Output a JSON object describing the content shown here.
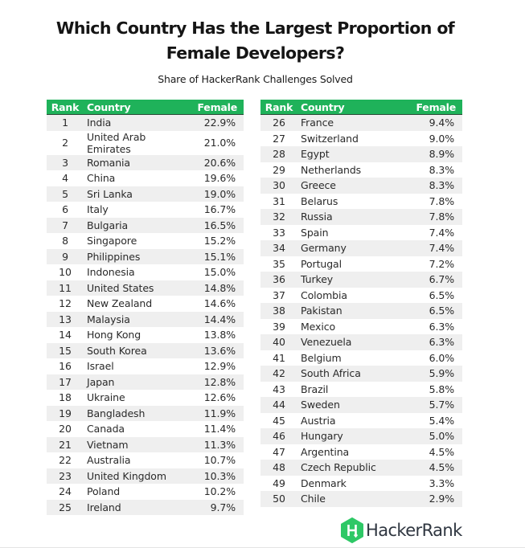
{
  "title_line1": "Which Country Has the Largest Proportion of",
  "title_line2": "Female Developers?",
  "subtitle": "Share of HackerRank Challenges Solved",
  "columns": {
    "rank": "Rank",
    "country": "Country",
    "female": "Female"
  },
  "colors": {
    "header_green": "#1fb25a",
    "stripe_gray": "#efefef",
    "logo_green": "#2ec866"
  },
  "left_table": [
    {
      "rank": "1",
      "country": "India",
      "female": "22.9%"
    },
    {
      "rank": "2",
      "country": "United Arab Emirates",
      "female": "21.0%"
    },
    {
      "rank": "3",
      "country": "Romania",
      "female": "20.6%"
    },
    {
      "rank": "4",
      "country": "China",
      "female": "19.6%"
    },
    {
      "rank": "5",
      "country": "Sri Lanka",
      "female": "19.0%"
    },
    {
      "rank": "6",
      "country": "Italy",
      "female": "16.7%"
    },
    {
      "rank": "7",
      "country": "Bulgaria",
      "female": "16.5%"
    },
    {
      "rank": "8",
      "country": "Singapore",
      "female": "15.2%"
    },
    {
      "rank": "9",
      "country": "Philippines",
      "female": "15.1%"
    },
    {
      "rank": "10",
      "country": "Indonesia",
      "female": "15.0%"
    },
    {
      "rank": "11",
      "country": "United States",
      "female": "14.8%"
    },
    {
      "rank": "12",
      "country": "New Zealand",
      "female": "14.6%"
    },
    {
      "rank": "13",
      "country": "Malaysia",
      "female": "14.4%"
    },
    {
      "rank": "14",
      "country": "Hong Kong",
      "female": "13.8%"
    },
    {
      "rank": "15",
      "country": "South Korea",
      "female": "13.6%"
    },
    {
      "rank": "16",
      "country": "Israel",
      "female": "12.9%"
    },
    {
      "rank": "17",
      "country": "Japan",
      "female": "12.8%"
    },
    {
      "rank": "18",
      "country": "Ukraine",
      "female": "12.6%"
    },
    {
      "rank": "19",
      "country": "Bangladesh",
      "female": "11.9%"
    },
    {
      "rank": "20",
      "country": "Canada",
      "female": "11.4%"
    },
    {
      "rank": "21",
      "country": "Vietnam",
      "female": "11.3%"
    },
    {
      "rank": "22",
      "country": "Australia",
      "female": "10.7%"
    },
    {
      "rank": "23",
      "country": "United Kingdom",
      "female": "10.3%"
    },
    {
      "rank": "24",
      "country": "Poland",
      "female": "10.2%"
    },
    {
      "rank": "25",
      "country": "Ireland",
      "female": "9.7%"
    }
  ],
  "right_table": [
    {
      "rank": "26",
      "country": "France",
      "female": "9.4%"
    },
    {
      "rank": "27",
      "country": "Switzerland",
      "female": "9.0%"
    },
    {
      "rank": "28",
      "country": "Egypt",
      "female": "8.9%"
    },
    {
      "rank": "29",
      "country": "Netherlands",
      "female": "8.3%"
    },
    {
      "rank": "30",
      "country": "Greece",
      "female": "8.3%"
    },
    {
      "rank": "31",
      "country": "Belarus",
      "female": "7.8%"
    },
    {
      "rank": "32",
      "country": "Russia",
      "female": "7.8%"
    },
    {
      "rank": "33",
      "country": "Spain",
      "female": "7.4%"
    },
    {
      "rank": "34",
      "country": "Germany",
      "female": "7.4%"
    },
    {
      "rank": "35",
      "country": "Portugal",
      "female": "7.2%"
    },
    {
      "rank": "36",
      "country": "Turkey",
      "female": "6.7%"
    },
    {
      "rank": "37",
      "country": "Colombia",
      "female": "6.5%"
    },
    {
      "rank": "38",
      "country": "Pakistan",
      "female": "6.5%"
    },
    {
      "rank": "39",
      "country": "Mexico",
      "female": "6.3%"
    },
    {
      "rank": "40",
      "country": "Venezuela",
      "female": "6.3%"
    },
    {
      "rank": "41",
      "country": "Belgium",
      "female": "6.0%"
    },
    {
      "rank": "42",
      "country": "South Africa",
      "female": "5.9%"
    },
    {
      "rank": "43",
      "country": "Brazil",
      "female": "5.8%"
    },
    {
      "rank": "44",
      "country": "Sweden",
      "female": "5.7%"
    },
    {
      "rank": "45",
      "country": "Austria",
      "female": "5.4%"
    },
    {
      "rank": "46",
      "country": "Hungary",
      "female": "5.0%"
    },
    {
      "rank": "47",
      "country": "Argentina",
      "female": "4.5%"
    },
    {
      "rank": "48",
      "country": "Czech Republic",
      "female": "4.5%"
    },
    {
      "rank": "49",
      "country": "Denmark",
      "female": "3.3%"
    },
    {
      "rank": "50",
      "country": "Chile",
      "female": "2.9%"
    }
  ],
  "logo": {
    "icon": "hackerrank-hex-logo-icon",
    "letter": "H",
    "text": "HackerRank"
  },
  "chart_data": {
    "type": "table",
    "title": "Which Country Has the Largest Proportion of Female Developers?",
    "subtitle": "Share of HackerRank Challenges Solved",
    "columns": [
      "Rank",
      "Country",
      "Female"
    ],
    "categories": [
      "India",
      "United Arab Emirates",
      "Romania",
      "China",
      "Sri Lanka",
      "Italy",
      "Bulgaria",
      "Singapore",
      "Philippines",
      "Indonesia",
      "United States",
      "New Zealand",
      "Malaysia",
      "Hong Kong",
      "South Korea",
      "Israel",
      "Japan",
      "Ukraine",
      "Bangladesh",
      "Canada",
      "Vietnam",
      "Australia",
      "United Kingdom",
      "Poland",
      "Ireland",
      "France",
      "Switzerland",
      "Egypt",
      "Netherlands",
      "Greece",
      "Belarus",
      "Russia",
      "Spain",
      "Germany",
      "Portugal",
      "Turkey",
      "Colombia",
      "Pakistan",
      "Mexico",
      "Venezuela",
      "Belgium",
      "South Africa",
      "Brazil",
      "Sweden",
      "Austria",
      "Hungary",
      "Argentina",
      "Czech Republic",
      "Denmark",
      "Chile"
    ],
    "values": [
      22.9,
      21.0,
      20.6,
      19.6,
      19.0,
      16.7,
      16.5,
      15.2,
      15.1,
      15.0,
      14.8,
      14.6,
      14.4,
      13.8,
      13.6,
      12.9,
      12.8,
      12.6,
      11.9,
      11.4,
      11.3,
      10.7,
      10.3,
      10.2,
      9.7,
      9.4,
      9.0,
      8.9,
      8.3,
      8.3,
      7.8,
      7.8,
      7.4,
      7.4,
      7.2,
      6.7,
      6.5,
      6.5,
      6.3,
      6.3,
      6.0,
      5.9,
      5.8,
      5.7,
      5.4,
      5.0,
      4.5,
      4.5,
      3.3,
      2.9
    ],
    "unit": "%",
    "source_logo": "HackerRank"
  }
}
